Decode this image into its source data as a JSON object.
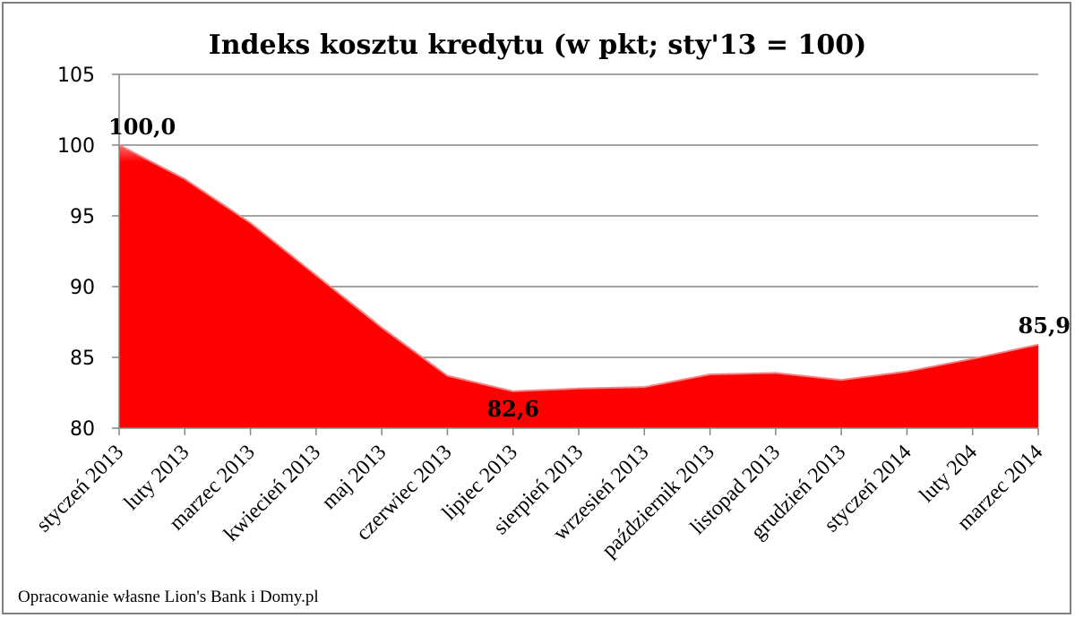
{
  "chart_data": {
    "type": "area",
    "title": "Indeks kosztu kredytu (w pkt; sty'13 = 100)",
    "categories": [
      "styczeń 2013",
      "luty 2013",
      "marzec 2013",
      "kwiecień 2013",
      "maj 2013",
      "czerwiec 2013",
      "lipiec 2013",
      "sierpień 2013",
      "wrzesień 2013",
      "październik 2013",
      "listopad 2013",
      "grudzień 2013",
      "styczeń 2014",
      "luty 204",
      "marzec 2014"
    ],
    "values": [
      100.0,
      97.6,
      94.5,
      90.8,
      87.1,
      83.7,
      82.6,
      82.8,
      82.9,
      83.8,
      83.9,
      83.4,
      84.0,
      84.9,
      85.9
    ],
    "ylim": [
      80,
      105
    ],
    "yticks": [
      80,
      85,
      90,
      95,
      100,
      105
    ],
    "data_labels": [
      {
        "index": 0,
        "text": "100,0"
      },
      {
        "index": 6,
        "text": "82,6"
      },
      {
        "index": 14,
        "text": "85,9"
      }
    ],
    "grid": true,
    "area_color": "#ff0000",
    "xlabel": "",
    "ylabel": ""
  },
  "footer": {
    "source": "Opracowanie własne Lion's Bank i Domy.pl"
  }
}
